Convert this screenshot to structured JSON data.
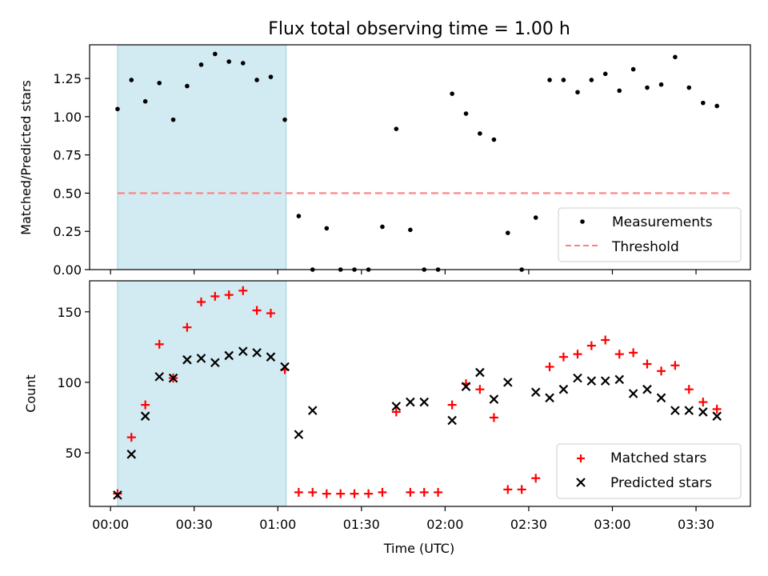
{
  "title": "Flux total observing time = 1.00 h",
  "x_axis": {
    "label": "Time (UTC)",
    "range_hours": [
      -0.125,
      3.825
    ],
    "tick_hours": [
      0,
      0.5,
      1,
      1.5,
      2,
      2.5,
      3,
      3.5
    ],
    "tick_labels": [
      "00:00",
      "00:30",
      "01:00",
      "01:30",
      "02:00",
      "02:30",
      "03:00",
      "03:30"
    ]
  },
  "shaded_span_hours": [
    0.042,
    1.05
  ],
  "chart_data": [
    {
      "type": "scatter",
      "ylabel": "Matched/Predicted stars",
      "ylim": [
        0,
        1.47
      ],
      "yticks": [
        0,
        0.25,
        0.5,
        0.75,
        1.0,
        1.25
      ],
      "ytick_labels": [
        "0.00",
        "0.25",
        "0.50",
        "0.75",
        "1.00",
        "1.25"
      ],
      "series": [
        {
          "name": "Measurements",
          "marker": "dot",
          "color": "#000000",
          "x": [
            0.042,
            0.125,
            0.208,
            0.292,
            0.375,
            0.458,
            0.542,
            0.625,
            0.708,
            0.792,
            0.875,
            0.958,
            1.042,
            1.125,
            1.208,
            1.292,
            1.375,
            1.458,
            1.542,
            1.625,
            1.708,
            1.792,
            1.875,
            1.958,
            2.042,
            2.125,
            2.208,
            2.292,
            2.375,
            2.458,
            2.542,
            2.625,
            2.708,
            2.792,
            2.875,
            2.958,
            3.042,
            3.125,
            3.208,
            3.292,
            3.375,
            3.458,
            3.542,
            3.625,
            3.708
          ],
          "y": [
            1.05,
            1.24,
            1.1,
            1.22,
            0.98,
            1.2,
            1.34,
            1.41,
            1.36,
            1.35,
            1.24,
            1.26,
            0.98,
            0.35,
            0.0,
            0.27,
            0.0,
            0.0,
            0.0,
            0.28,
            0.92,
            0.26,
            0.0,
            0.0,
            1.15,
            1.02,
            0.89,
            0.85,
            0.24,
            0.0,
            0.34,
            1.24,
            1.24,
            1.16,
            1.24,
            1.28,
            1.17,
            1.31,
            1.19,
            1.21,
            1.39,
            1.19,
            1.09,
            1.07,
            null
          ]
        },
        {
          "name": "Threshold",
          "marker": "dashed-line",
          "color": "#ff7f7f",
          "x": [
            0.042,
            3.708
          ],
          "y": [
            0.5,
            0.5
          ]
        }
      ],
      "legend": {
        "placement": "lower-right",
        "entries": [
          "Measurements",
          "Threshold"
        ]
      }
    },
    {
      "type": "scatter",
      "ylabel": "Count",
      "ylim": [
        12,
        172
      ],
      "yticks": [
        50,
        100,
        150
      ],
      "ytick_labels": [
        "50",
        "100",
        "150"
      ],
      "series": [
        {
          "name": "Matched stars",
          "marker": "plus",
          "color": "#ff0000",
          "x": [
            0.042,
            0.125,
            0.208,
            0.292,
            0.375,
            0.458,
            0.542,
            0.625,
            0.708,
            0.792,
            0.875,
            0.958,
            1.042,
            1.125,
            1.208,
            1.292,
            1.375,
            1.458,
            1.542,
            1.625,
            1.708,
            1.792,
            1.875,
            1.958,
            2.042,
            2.125,
            2.208,
            2.292,
            2.375,
            2.458,
            2.542,
            2.625,
            2.708,
            2.792,
            2.875,
            2.958,
            3.042,
            3.125,
            3.208,
            3.292,
            3.375,
            3.458,
            3.542,
            3.625,
            3.708
          ],
          "y": [
            21,
            61,
            84,
            127,
            103,
            139,
            157,
            161,
            162,
            165,
            151,
            149,
            109,
            22,
            22,
            21,
            21,
            21,
            21,
            22,
            79,
            22,
            22,
            22,
            84,
            99,
            95,
            75,
            24,
            24,
            32,
            111,
            118,
            120,
            126,
            130,
            120,
            121,
            113,
            108,
            112,
            95,
            86,
            81,
            null
          ]
        },
        {
          "name": "Predicted stars",
          "marker": "x",
          "color": "#000000",
          "x": [
            0.042,
            0.125,
            0.208,
            0.292,
            0.375,
            0.458,
            0.542,
            0.625,
            0.708,
            0.792,
            0.875,
            0.958,
            1.042,
            1.125,
            1.208,
            1.708,
            1.792,
            1.875,
            2.042,
            2.125,
            2.208,
            2.292,
            2.375,
            2.542,
            2.625,
            2.708,
            2.792,
            2.875,
            2.958,
            3.042,
            3.125,
            3.208,
            3.292,
            3.375,
            3.458,
            3.542,
            3.625,
            3.708
          ],
          "y": [
            20,
            49,
            76,
            104,
            103,
            116,
            117,
            114,
            119,
            122,
            121,
            118,
            111,
            63,
            80,
            83,
            86,
            86,
            73,
            97,
            107,
            88,
            100,
            93,
            89,
            95,
            103,
            101,
            101,
            102,
            92,
            95,
            89,
            80,
            80,
            79,
            76,
            null
          ]
        }
      ],
      "legend": {
        "placement": "lower-right",
        "entries": [
          "Matched stars",
          "Predicted stars"
        ]
      }
    }
  ]
}
